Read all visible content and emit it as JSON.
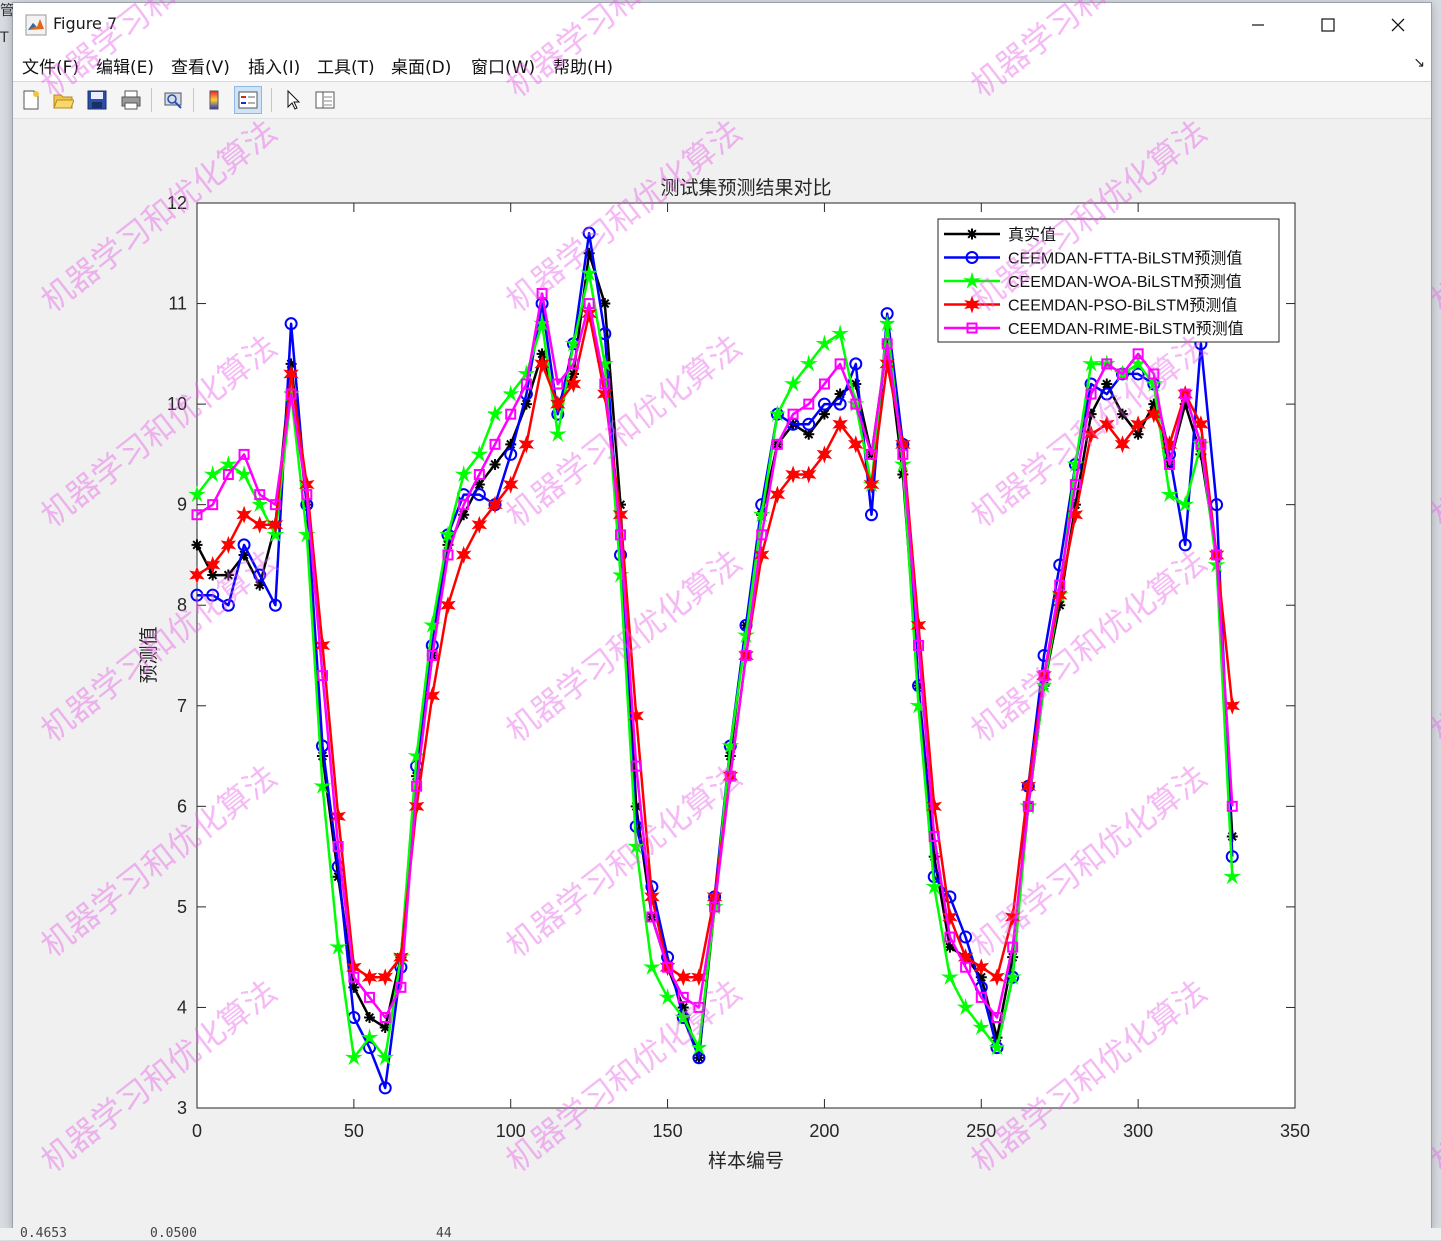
{
  "window": {
    "title": "Figure 7",
    "controls": [
      "minimize",
      "maximize",
      "close"
    ]
  },
  "menu": {
    "items": [
      "文件(F)",
      "编辑(E)",
      "查看(V)",
      "插入(I)",
      "工具(T)",
      "桌面(D)",
      "窗口(W)",
      "帮助(H)"
    ]
  },
  "toolbar": {
    "buttons": [
      "new-figure",
      "open-file",
      "save",
      "print",
      "print-preview",
      "insert-colorbar",
      "insert-legend",
      "edit-plot-pointer",
      "property-inspector"
    ]
  },
  "watermark_text": "机器学习和优化算法",
  "behind_window_text": {
    "left_top": "管",
    "left_second": "T",
    "bottom_values": [
      "0.4653",
      "0.0500",
      "44"
    ]
  },
  "chart_data": {
    "type": "line",
    "title": "测试集预测结果对比",
    "xlabel": "样本编号",
    "ylabel": "预测值",
    "xlim": [
      0,
      350
    ],
    "ylim": [
      3,
      12
    ],
    "xticks": [
      0,
      50,
      100,
      150,
      200,
      250,
      300,
      350
    ],
    "yticks": [
      3,
      4,
      5,
      6,
      7,
      8,
      9,
      10,
      11,
      12
    ],
    "grid": false,
    "legend_position": "top-right",
    "x": [
      0,
      5,
      10,
      15,
      20,
      25,
      30,
      35,
      40,
      45,
      50,
      55,
      60,
      65,
      70,
      75,
      80,
      85,
      90,
      95,
      100,
      105,
      110,
      115,
      120,
      125,
      130,
      135,
      140,
      145,
      150,
      155,
      160,
      165,
      170,
      175,
      180,
      185,
      190,
      195,
      200,
      205,
      210,
      215,
      220,
      225,
      230,
      235,
      240,
      245,
      250,
      255,
      260,
      265,
      270,
      275,
      280,
      285,
      290,
      295,
      300,
      305,
      310,
      315,
      320,
      325,
      330
    ],
    "series": [
      {
        "name": "真实值",
        "color": "#000000",
        "marker": "asterisk",
        "values": [
          8.6,
          8.3,
          8.3,
          8.5,
          8.2,
          8.8,
          10.4,
          9.0,
          6.5,
          5.3,
          4.2,
          3.9,
          3.8,
          4.5,
          6.3,
          7.5,
          8.6,
          8.9,
          9.2,
          9.4,
          9.6,
          10.0,
          10.5,
          10.0,
          10.3,
          11.5,
          11.0,
          9.0,
          6.0,
          4.9,
          4.4,
          4.0,
          3.5,
          5.0,
          6.5,
          7.8,
          8.9,
          9.6,
          9.8,
          9.7,
          9.9,
          10.1,
          10.2,
          9.5,
          10.6,
          9.3,
          7.2,
          5.5,
          4.6,
          4.5,
          4.3,
          3.7,
          4.5,
          6.0,
          7.2,
          8.0,
          9.0,
          9.9,
          10.2,
          9.9,
          9.7,
          10.0,
          9.4,
          10.0,
          9.5,
          8.5,
          5.7
        ]
      },
      {
        "name": "CEEMDAN-FTTA-BiLSTM预测值",
        "color": "#0000ff",
        "marker": "circle",
        "values": [
          8.1,
          8.1,
          8.0,
          8.6,
          8.3,
          8.0,
          10.8,
          9.0,
          6.6,
          5.4,
          3.9,
          3.6,
          3.2,
          4.4,
          6.4,
          7.6,
          8.7,
          9.1,
          9.1,
          9.0,
          9.5,
          10.1,
          11.0,
          9.9,
          10.6,
          11.7,
          10.7,
          8.5,
          5.8,
          5.2,
          4.5,
          3.9,
          3.5,
          5.1,
          6.6,
          7.8,
          9.0,
          9.9,
          9.8,
          9.8,
          10.0,
          10.0,
          10.4,
          8.9,
          10.9,
          9.6,
          7.2,
          5.3,
          5.1,
          4.7,
          4.2,
          3.6,
          4.3,
          6.2,
          7.5,
          8.4,
          9.4,
          10.2,
          10.1,
          10.3,
          10.3,
          10.2,
          9.5,
          8.6,
          10.6,
          9.0,
          5.5
        ]
      },
      {
        "name": "CEEMDAN-WOA-BiLSTM预测值",
        "color": "#00ff00",
        "marker": "star",
        "values": [
          9.1,
          9.3,
          9.4,
          9.3,
          9.0,
          8.7,
          10.1,
          8.7,
          6.2,
          4.6,
          3.5,
          3.7,
          3.5,
          4.5,
          6.5,
          7.8,
          8.7,
          9.3,
          9.5,
          9.9,
          10.1,
          10.3,
          10.8,
          9.7,
          10.6,
          11.3,
          10.4,
          8.3,
          5.6,
          4.4,
          4.1,
          3.9,
          3.6,
          5.0,
          6.6,
          7.7,
          8.9,
          9.9,
          10.2,
          10.4,
          10.6,
          10.7,
          10.0,
          9.2,
          10.8,
          9.4,
          7.0,
          5.2,
          4.3,
          4.0,
          3.8,
          3.6,
          4.3,
          6.0,
          7.2,
          8.1,
          9.4,
          10.4,
          10.4,
          10.3,
          10.4,
          10.2,
          9.1,
          9.0,
          9.6,
          8.4,
          5.3
        ]
      },
      {
        "name": "CEEMDAN-PSO-BiLSTM预测值",
        "color": "#ff0000",
        "marker": "hexagram",
        "values": [
          8.3,
          8.4,
          8.6,
          8.9,
          8.8,
          8.8,
          10.3,
          9.2,
          7.6,
          5.9,
          4.4,
          4.3,
          4.3,
          4.5,
          6.0,
          7.1,
          8.0,
          8.5,
          8.8,
          9.0,
          9.2,
          9.6,
          10.4,
          10.0,
          10.2,
          10.9,
          10.1,
          8.9,
          6.9,
          5.1,
          4.4,
          4.3,
          4.3,
          5.1,
          6.3,
          7.5,
          8.5,
          9.1,
          9.3,
          9.3,
          9.5,
          9.8,
          9.6,
          9.2,
          10.4,
          9.6,
          7.8,
          6.0,
          4.9,
          4.5,
          4.4,
          4.3,
          4.9,
          6.2,
          7.3,
          8.1,
          8.9,
          9.7,
          9.8,
          9.6,
          9.8,
          9.9,
          9.6,
          10.1,
          9.8,
          8.5,
          7.0
        ]
      },
      {
        "name": "CEEMDAN-RIME-BiLSTM预测值",
        "color": "#ff00ff",
        "marker": "square",
        "values": [
          8.9,
          9.0,
          9.3,
          9.5,
          9.1,
          9.0,
          10.1,
          9.1,
          7.3,
          5.6,
          4.3,
          4.1,
          3.9,
          4.2,
          6.2,
          7.5,
          8.5,
          9.0,
          9.3,
          9.6,
          9.9,
          10.2,
          11.1,
          10.2,
          10.4,
          11.0,
          10.2,
          8.7,
          6.4,
          4.9,
          4.4,
          4.1,
          4.0,
          5.0,
          6.3,
          7.5,
          8.7,
          9.6,
          9.9,
          10.0,
          10.2,
          10.4,
          10.0,
          9.5,
          10.6,
          9.5,
          7.6,
          5.7,
          4.7,
          4.4,
          4.1,
          3.9,
          4.6,
          6.0,
          7.3,
          8.2,
          9.2,
          10.1,
          10.4,
          10.3,
          10.5,
          10.3,
          9.4,
          10.1,
          9.6,
          8.5,
          6.0
        ]
      }
    ]
  }
}
